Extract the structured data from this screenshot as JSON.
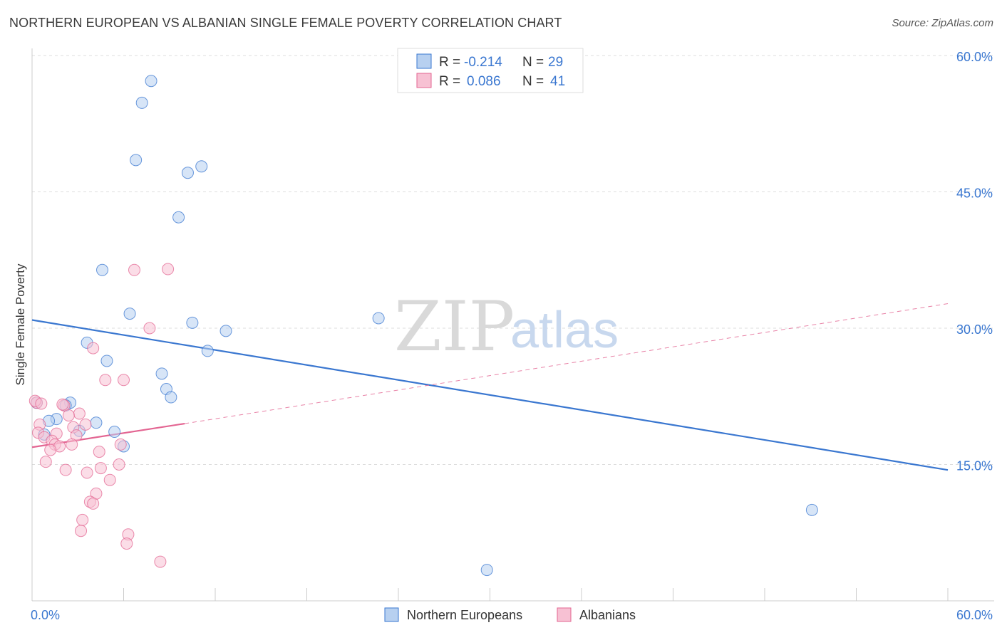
{
  "title": "NORTHERN EUROPEAN VS ALBANIAN SINGLE FEMALE POVERTY CORRELATION CHART",
  "source": "Source: ZipAtlas.com",
  "watermark": {
    "zip": "ZIP",
    "atlas": "atlas"
  },
  "colors": {
    "blue": "#3a77d0",
    "blue_fill": "#b7d0f0",
    "pink": "#e36592",
    "pink_fill": "#f7c1d3",
    "grid": "#dddddd"
  },
  "legend_box": {
    "rows": [
      {
        "r_label": "R =",
        "r_value": "-0.214",
        "n_label": "N =",
        "n_value": "29",
        "series": "blue"
      },
      {
        "r_label": "R =",
        "r_value": "0.086",
        "n_label": "N =",
        "n_value": "41",
        "series": "pink"
      }
    ]
  },
  "chart_data": {
    "type": "scatter",
    "title": "NORTHERN EUROPEAN VS ALBANIAN SINGLE FEMALE POVERTY CORRELATION CHART",
    "xlabel": "",
    "ylabel": "Single Female Poverty",
    "xlim": [
      0,
      60
    ],
    "ylim": [
      0,
      60
    ],
    "x_tick_labels": [
      "0.0%",
      "60.0%"
    ],
    "y_ticks": [
      15,
      30,
      45,
      60
    ],
    "y_tick_labels": [
      "15.0%",
      "30.0%",
      "45.0%",
      "60.0%"
    ],
    "grid": true,
    "legend_position": "bottom-center",
    "series": [
      {
        "name": "Northern Europeans",
        "color": "blue",
        "r": -0.214,
        "n": 29,
        "trend": {
          "x": [
            0,
            60
          ],
          "y": [
            30.9,
            14.4
          ],
          "style": "solid"
        },
        "points": [
          {
            "x": 7.8,
            "y": 57.2
          },
          {
            "x": 7.2,
            "y": 54.8
          },
          {
            "x": 6.8,
            "y": 48.5
          },
          {
            "x": 11.1,
            "y": 47.8
          },
          {
            "x": 10.2,
            "y": 47.1
          },
          {
            "x": 9.6,
            "y": 42.2
          },
          {
            "x": 4.6,
            "y": 36.4
          },
          {
            "x": 6.4,
            "y": 31.6
          },
          {
            "x": 10.5,
            "y": 30.6
          },
          {
            "x": 12.7,
            "y": 29.7
          },
          {
            "x": 22.7,
            "y": 31.1
          },
          {
            "x": 3.6,
            "y": 28.4
          },
          {
            "x": 11.5,
            "y": 27.5
          },
          {
            "x": 4.9,
            "y": 26.4
          },
          {
            "x": 8.5,
            "y": 25.0
          },
          {
            "x": 8.8,
            "y": 23.3
          },
          {
            "x": 9.1,
            "y": 22.4
          },
          {
            "x": 0.3,
            "y": 21.8
          },
          {
            "x": 2.5,
            "y": 21.8
          },
          {
            "x": 2.2,
            "y": 21.5
          },
          {
            "x": 1.6,
            "y": 20.0
          },
          {
            "x": 4.2,
            "y": 19.6
          },
          {
            "x": 1.1,
            "y": 19.8
          },
          {
            "x": 3.1,
            "y": 18.7
          },
          {
            "x": 5.4,
            "y": 18.6
          },
          {
            "x": 0.8,
            "y": 18.3
          },
          {
            "x": 6.0,
            "y": 17.0
          },
          {
            "x": 51.1,
            "y": 10.0
          },
          {
            "x": 29.8,
            "y": 3.4
          }
        ]
      },
      {
        "name": "Albanians",
        "color": "pink",
        "r": 0.086,
        "n": 41,
        "trend": {
          "x": [
            0,
            10
          ],
          "y": [
            16.9,
            19.5
          ],
          "style": "solid",
          "extended": {
            "x": [
              10,
              60
            ],
            "y": [
              19.5,
              32.7
            ],
            "style": "dashed"
          }
        },
        "points": [
          {
            "x": 6.7,
            "y": 36.4
          },
          {
            "x": 8.9,
            "y": 36.5
          },
          {
            "x": 7.7,
            "y": 30.0
          },
          {
            "x": 4.0,
            "y": 27.8
          },
          {
            "x": 4.8,
            "y": 24.3
          },
          {
            "x": 6.0,
            "y": 24.3
          },
          {
            "x": 0.3,
            "y": 21.8
          },
          {
            "x": 2.1,
            "y": 21.5
          },
          {
            "x": 3.1,
            "y": 20.6
          },
          {
            "x": 2.4,
            "y": 20.4
          },
          {
            "x": 0.5,
            "y": 19.4
          },
          {
            "x": 3.5,
            "y": 19.4
          },
          {
            "x": 2.7,
            "y": 19.1
          },
          {
            "x": 0.4,
            "y": 18.5
          },
          {
            "x": 1.6,
            "y": 18.4
          },
          {
            "x": 2.9,
            "y": 18.2
          },
          {
            "x": 0.8,
            "y": 18.0
          },
          {
            "x": 1.3,
            "y": 17.6
          },
          {
            "x": 1.5,
            "y": 17.2
          },
          {
            "x": 2.6,
            "y": 17.2
          },
          {
            "x": 1.8,
            "y": 17.0
          },
          {
            "x": 5.8,
            "y": 17.2
          },
          {
            "x": 1.2,
            "y": 16.6
          },
          {
            "x": 4.4,
            "y": 16.4
          },
          {
            "x": 0.9,
            "y": 15.3
          },
          {
            "x": 5.7,
            "y": 15.0
          },
          {
            "x": 2.2,
            "y": 14.4
          },
          {
            "x": 4.5,
            "y": 14.6
          },
          {
            "x": 3.6,
            "y": 14.1
          },
          {
            "x": 5.1,
            "y": 13.3
          },
          {
            "x": 4.2,
            "y": 11.8
          },
          {
            "x": 3.8,
            "y": 10.9
          },
          {
            "x": 4.0,
            "y": 10.7
          },
          {
            "x": 3.3,
            "y": 8.9
          },
          {
            "x": 3.2,
            "y": 7.7
          },
          {
            "x": 6.3,
            "y": 7.3
          },
          {
            "x": 6.2,
            "y": 6.3
          },
          {
            "x": 8.4,
            "y": 4.3
          },
          {
            "x": 0.2,
            "y": 22.0
          },
          {
            "x": 2.0,
            "y": 21.6
          },
          {
            "x": 0.6,
            "y": 21.7
          }
        ]
      }
    ]
  }
}
